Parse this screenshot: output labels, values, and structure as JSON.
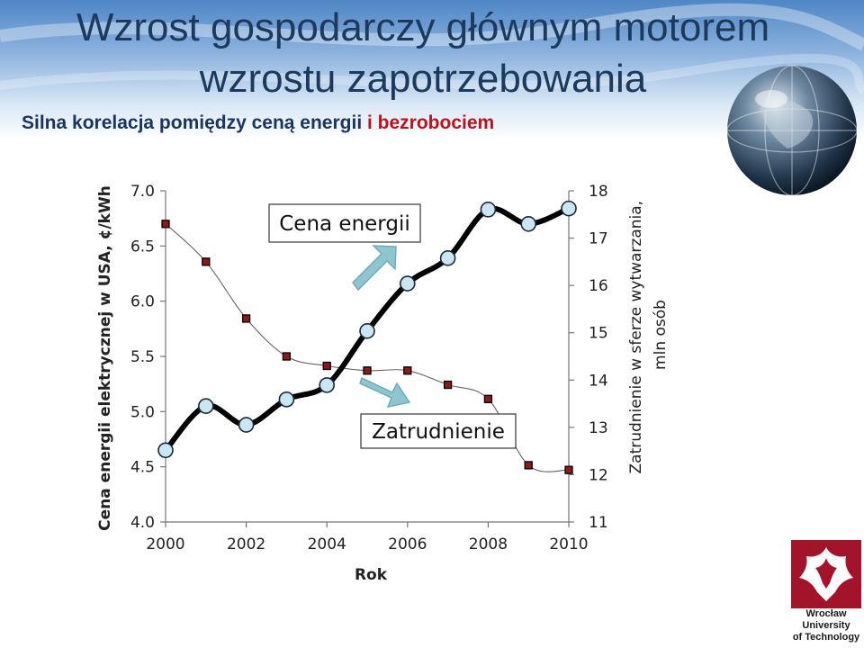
{
  "slide": {
    "title_line1": "Wzrost gospodarczy głównym motorem",
    "title_line2": "wzrostu zapotrzebowania",
    "subtitle_part1": "Silna korelacja pomiędzy ceną energii",
    "subtitle_part2": " i bezrobociem",
    "colors": {
      "title": "#1c3a5e",
      "subtitle": "#1a3560",
      "subtitle_accent": "#c0101e"
    }
  },
  "logo": {
    "text_line1": "Wrocław",
    "text_line2": "University",
    "text_line3": "of Technology",
    "icon": "eagle-crest-icon",
    "color": "#a3142a"
  },
  "globe": {
    "icon": "globe-icon"
  },
  "chart_data": {
    "type": "line",
    "xlabel": "Rok",
    "ylabel_left": "Cena energii elektrycznej w USA, ¢/kWh",
    "ylabel_right": "Zatrudnienie w sferze wytwarzania, mln osób",
    "xlim": [
      2000,
      2010
    ],
    "ylim_left": [
      4.0,
      7.0
    ],
    "ylim_right": [
      11,
      18
    ],
    "x_ticks": [
      "2000",
      "2002",
      "2004",
      "2006",
      "2008",
      "2010"
    ],
    "y_left_ticks": [
      "7.0",
      "6.5",
      "6.0",
      "5.5",
      "5.0",
      "4.5",
      "4.0"
    ],
    "y_right_ticks": [
      "18",
      "17",
      "16",
      "15",
      "14",
      "13",
      "12",
      "11"
    ],
    "grid": false,
    "series": [
      {
        "axis": "left",
        "color": "#000000",
        "marker": "circle",
        "marker_fill": "#c9e6f2",
        "x": [
          2000,
          2001,
          2002,
          2003,
          2004,
          2005,
          2006,
          2007,
          2008,
          2009,
          2010
        ],
        "values": [
          4.65,
          5.05,
          4.88,
          5.11,
          5.24,
          5.73,
          6.16,
          6.39,
          6.83,
          6.7,
          6.84
        ]
      },
      {
        "axis": "right",
        "color": "#666666",
        "marker": "square",
        "marker_fill": "#8b1a1a",
        "x": [
          2000,
          2001,
          2002,
          2003,
          2004,
          2005,
          2006,
          2007,
          2008,
          2009,
          2010
        ],
        "values": [
          17.3,
          16.5,
          15.3,
          14.5,
          14.3,
          14.2,
          14.2,
          13.9,
          13.6,
          12.2,
          12.1
        ]
      }
    ],
    "annotations": [
      {
        "text": "Cena energii",
        "arrow_direction": "up-right"
      },
      {
        "text": "Zatrudnienie",
        "arrow_direction": "down-right"
      }
    ],
    "arrow_color": "#8ec6d0"
  }
}
